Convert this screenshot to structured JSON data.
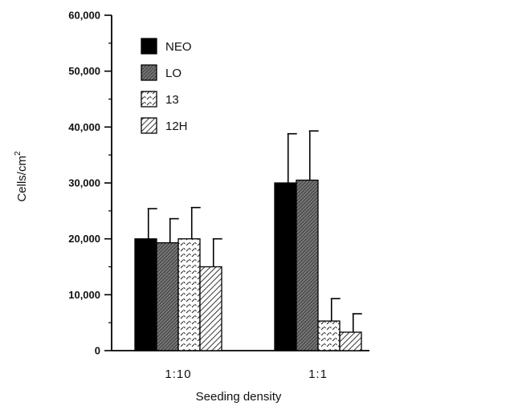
{
  "chart_data": {
    "type": "bar",
    "title": "",
    "xlabel": "Seeding density",
    "ylabel": "Cells/cm",
    "ylabel_superscript": "2",
    "categories": [
      "1:10",
      "1:1"
    ],
    "ylim": [
      0,
      60000
    ],
    "yticks": [
      0,
      10000,
      20000,
      30000,
      40000,
      50000,
      60000
    ],
    "ytick_labels": [
      "0",
      "10,000",
      "20,000",
      "30,000",
      "40,000",
      "50,000",
      "60,000"
    ],
    "grid": false,
    "legend_position": "top-left",
    "series": [
      {
        "name": "NEO",
        "values": [
          20000,
          30000
        ],
        "errors": [
          5400,
          8800
        ],
        "color": "#000000",
        "pattern": "solid"
      },
      {
        "name": "LO",
        "values": [
          19300,
          30500
        ],
        "errors": [
          4300,
          8800
        ],
        "color": "#555555",
        "pattern": "dense-hatch"
      },
      {
        "name": "13",
        "values": [
          20000,
          5300
        ],
        "errors": [
          5600,
          4000
        ],
        "color": "#ffffff",
        "pattern": "dashes"
      },
      {
        "name": "12H",
        "values": [
          15000,
          3300
        ],
        "errors": [
          5000,
          3300
        ],
        "color": "#bbbbbb",
        "pattern": "diagonal"
      }
    ]
  }
}
